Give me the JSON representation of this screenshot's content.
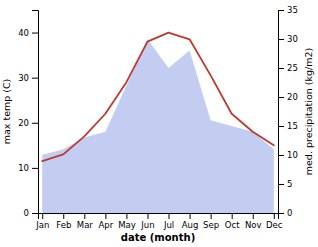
{
  "chart_data": {
    "type": "line",
    "x_label": "date (month)",
    "y_label": "max temp (C)",
    "y2_label": "med. precipitation (kg/m2)",
    "categories": [
      "Jan",
      "Feb",
      "Mar",
      "Apr",
      "May",
      "Jun",
      "Jul",
      "Aug",
      "Sep",
      "Oct",
      "Nov",
      "Dec"
    ],
    "series": [
      {
        "type": "area",
        "color": "#b8c4f0",
        "axis": "y2",
        "values": [
          10,
          11,
          13,
          14,
          22,
          30,
          25,
          28,
          16,
          15,
          14,
          11
        ]
      },
      {
        "type": "line",
        "color": "#c0392b",
        "values": [
          11.5,
          13.0,
          17.0,
          22.0,
          29.0,
          38.0,
          40.0,
          38.5,
          30.5,
          22.0,
          18.0,
          15.0
        ]
      }
    ],
    "ylim": [
      0,
      45
    ],
    "yticks": [
      0,
      10,
      20,
      30,
      40
    ],
    "y2lim": [
      0,
      35
    ],
    "y2ticks": [
      0,
      5,
      10,
      15,
      20,
      25,
      30,
      35
    ],
    "grid": false
  }
}
